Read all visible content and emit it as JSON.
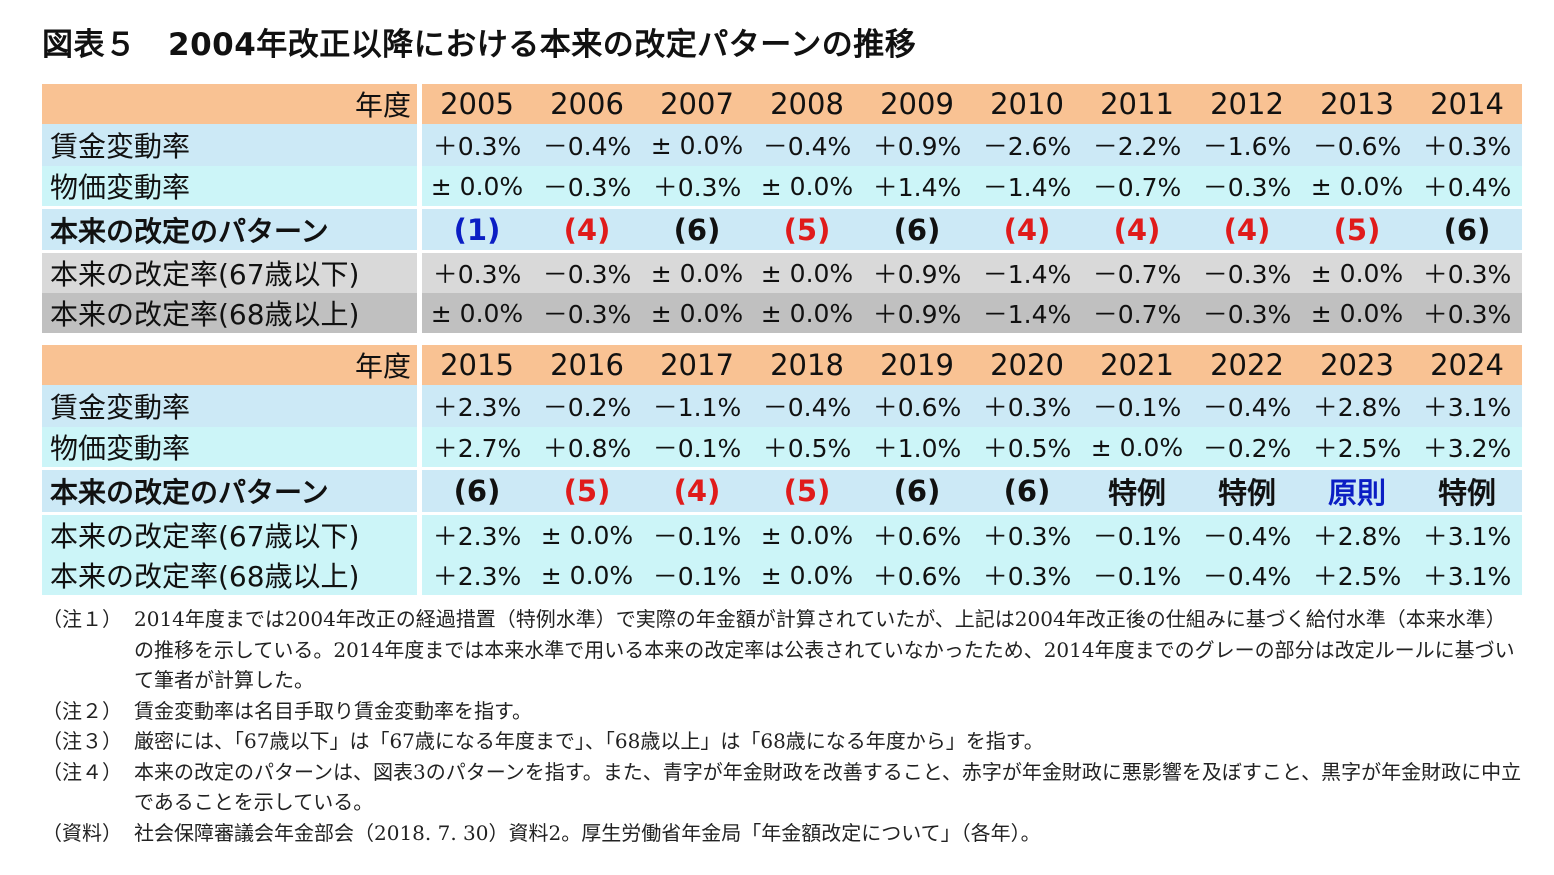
{
  "title": "図表５　2004年改正以降における本来の改定パターンの推移",
  "colors": {
    "header_bg": "#f9c293",
    "row_blue": "#cce9f6",
    "row_cyan": "#ccf5f8",
    "grey_light": "#d9d9d9",
    "grey_dark": "#c0c0c0",
    "pattern_blue": "#0b1ec4",
    "pattern_red": "#e01b1b",
    "pattern_black": "#111111"
  },
  "tables": [
    {
      "header_label": "年度",
      "years": [
        "2005",
        "2006",
        "2007",
        "2008",
        "2009",
        "2010",
        "2011",
        "2012",
        "2013",
        "2014"
      ],
      "rows": {
        "wage": {
          "label": "賃金変動率",
          "values": [
            "＋0.3%",
            "－0.4%",
            "± 0.0%",
            "－0.4%",
            "＋0.9%",
            "－2.6%",
            "－2.2%",
            "－1.6%",
            "－0.6%",
            "＋0.3%"
          ]
        },
        "price": {
          "label": "物価変動率",
          "values": [
            "± 0.0%",
            "－0.3%",
            "＋0.3%",
            "± 0.0%",
            "＋1.4%",
            "－1.4%",
            "－0.7%",
            "－0.3%",
            "± 0.0%",
            "＋0.4%"
          ]
        },
        "pattern": {
          "label": "本来の改定のパターン",
          "values": [
            "(1)",
            "(4)",
            "(6)",
            "(5)",
            "(6)",
            "(4)",
            "(4)",
            "(4)",
            "(5)",
            "(6)"
          ],
          "colors": [
            "blue",
            "red",
            "black",
            "red",
            "black",
            "red",
            "red",
            "red",
            "red",
            "black"
          ]
        },
        "u67": {
          "label": "本来の改定率(67歳以下)",
          "values": [
            "＋0.3%",
            "－0.3%",
            "± 0.0%",
            "± 0.0%",
            "＋0.9%",
            "－1.4%",
            "－0.7%",
            "－0.3%",
            "± 0.0%",
            "＋0.3%"
          ]
        },
        "o68": {
          "label": "本来の改定率(68歳以上)",
          "values": [
            "± 0.0%",
            "－0.3%",
            "± 0.0%",
            "± 0.0%",
            "＋0.9%",
            "－1.4%",
            "－0.7%",
            "－0.3%",
            "± 0.0%",
            "＋0.3%"
          ]
        }
      }
    },
    {
      "header_label": "年度",
      "years": [
        "2015",
        "2016",
        "2017",
        "2018",
        "2019",
        "2020",
        "2021",
        "2022",
        "2023",
        "2024"
      ],
      "rows": {
        "wage": {
          "label": "賃金変動率",
          "values": [
            "＋2.3%",
            "－0.2%",
            "－1.1%",
            "－0.4%",
            "＋0.6%",
            "＋0.3%",
            "－0.1%",
            "－0.4%",
            "＋2.8%",
            "＋3.1%"
          ]
        },
        "price": {
          "label": "物価変動率",
          "values": [
            "＋2.7%",
            "＋0.8%",
            "－0.1%",
            "＋0.5%",
            "＋1.0%",
            "＋0.5%",
            "± 0.0%",
            "－0.2%",
            "＋2.5%",
            "＋3.2%"
          ]
        },
        "pattern": {
          "label": "本来の改定のパターン",
          "values": [
            "(6)",
            "(5)",
            "(4)",
            "(5)",
            "(6)",
            "(6)",
            "特例",
            "特例",
            "原則",
            "特例"
          ],
          "colors": [
            "black",
            "red",
            "red",
            "red",
            "black",
            "black",
            "black",
            "black",
            "blue",
            "black"
          ]
        },
        "u67": {
          "label": "本来の改定率(67歳以下)",
          "values": [
            "＋2.3%",
            "± 0.0%",
            "－0.1%",
            "± 0.0%",
            "＋0.6%",
            "＋0.3%",
            "－0.1%",
            "－0.4%",
            "＋2.8%",
            "＋3.1%"
          ]
        },
        "o68": {
          "label": "本来の改定率(68歳以上)",
          "values": [
            "＋2.3%",
            "± 0.0%",
            "－0.1%",
            "± 0.0%",
            "＋0.6%",
            "＋0.3%",
            "－0.1%",
            "－0.4%",
            "＋2.5%",
            "＋3.1%"
          ]
        }
      }
    }
  ],
  "notes": [
    {
      "tag": "（注１）",
      "text": "2014年度までは2004年改正の経過措置（特例水準）で実際の年金額が計算されていたが、上記は2004年改正後の仕組みに基づく給付水準（本来水準）の推移を示している。2014年度までは本来水準で用いる本来の改定率は公表されていなかったため、2014年度までのグレーの部分は改定ルールに基づいて筆者が計算した。"
    },
    {
      "tag": "（注２）",
      "text": "賃金変動率は名目手取り賃金変動率を指す。"
    },
    {
      "tag": "（注３）",
      "text": "厳密には、「67歳以下」は「67歳になる年度まで」、「68歳以上」は「68歳になる年度から」を指す。"
    },
    {
      "tag": "（注４）",
      "text": "本来の改定のパターンは、図表3のパターンを指す。また、青字が年金財政を改善すること、赤字が年金財政に悪影響を及ぼすこと、黒字が年金財政に中立であることを示している。"
    },
    {
      "tag": "（資料）",
      "text": "社会保障審議会年金部会（2018. 7. 30）資料2。厚生労働省年金局「年金額改定について」（各年）。"
    }
  ]
}
